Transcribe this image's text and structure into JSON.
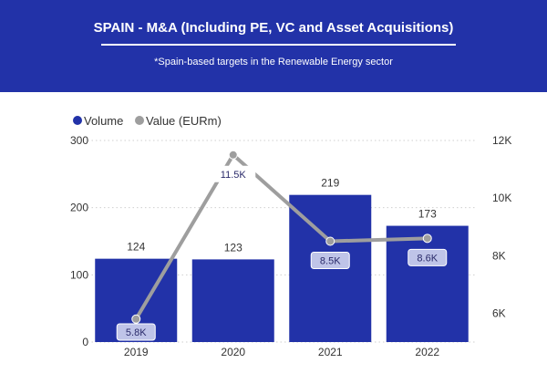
{
  "header": {
    "title": "SPAIN - M&A (Including PE, VC and Asset Acquisitions)",
    "subtitle": "*Spain-based targets in the Renewable Energy sector"
  },
  "chart_data": {
    "type": "bar",
    "categories": [
      "2019",
      "2020",
      "2021",
      "2022"
    ],
    "series": [
      {
        "name": "Volume",
        "type": "bar",
        "axis": "left",
        "color": "#2232a8",
        "values": [
          124,
          123,
          219,
          173
        ],
        "labels": [
          "124",
          "123",
          "219",
          "173"
        ]
      },
      {
        "name": "Value (EURm)",
        "type": "line",
        "axis": "right",
        "color": "#9e9e9e",
        "values": [
          5800,
          11500,
          8500,
          8600
        ],
        "labels": [
          "5.8K",
          "11.5K",
          "8.5K",
          "8.6K"
        ]
      }
    ],
    "y_left": {
      "range": [
        0,
        300
      ],
      "ticks": [
        0,
        100,
        200,
        300
      ],
      "tick_labels": [
        "0",
        "100",
        "200",
        "300"
      ]
    },
    "y_right": {
      "range": [
        5000,
        12000
      ],
      "ticks": [
        6000,
        8000,
        10000,
        12000
      ],
      "tick_labels": [
        "6K",
        "8K",
        "10K",
        "12K"
      ]
    },
    "grid": true,
    "legend": "top-left"
  }
}
